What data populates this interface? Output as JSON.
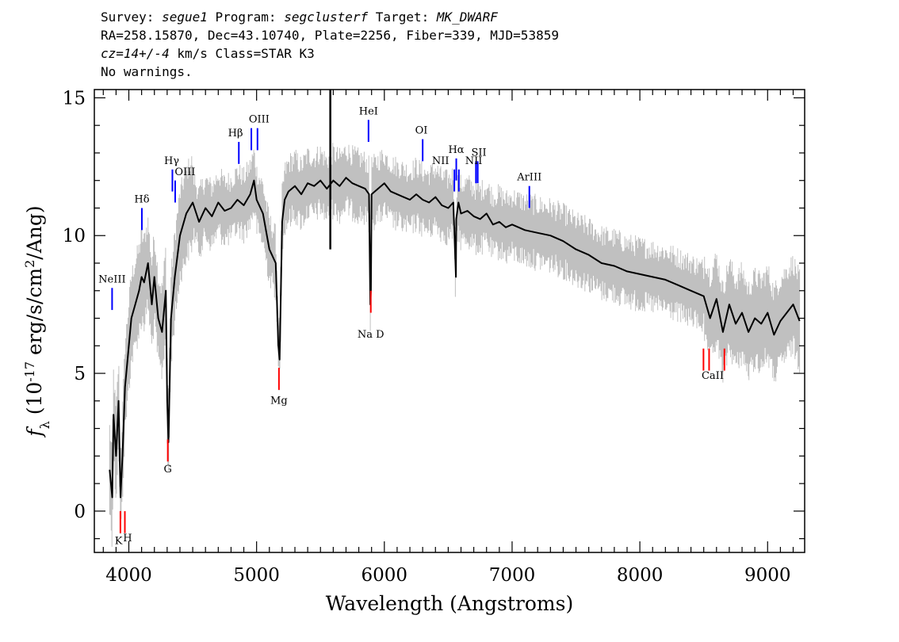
{
  "header": {
    "survey_label": "Survey: ",
    "survey": "segue1",
    "program_label": " Program: ",
    "program": "segclusterf",
    "target_label": " Target: ",
    "target": "MK_DWARF",
    "line2": "RA=258.15870, Dec=43.10740, Plate=2256, Fiber=339, MJD=53859",
    "cz": "cz=14+/-4",
    "line3_rest": " km/s Class=STAR K3",
    "line4": "No warnings."
  },
  "chart_data": {
    "type": "line",
    "xlabel": "Wavelength (Angstroms)",
    "ylabel": "f_λ (10^-17 erg/s/cm^2/Ang)",
    "xlim": [
      3730,
      9290
    ],
    "ylim": [
      -1.5,
      15.3
    ],
    "xticks": [
      4000,
      5000,
      6000,
      7000,
      8000,
      9000
    ],
    "yticks": [
      0,
      5,
      10,
      15
    ],
    "series": [
      {
        "role": "flux",
        "color": "#000000",
        "x": [
          3850,
          3870,
          3880,
          3900,
          3920,
          3935,
          3950,
          3970,
          4000,
          4020,
          4050,
          4080,
          4100,
          4120,
          4150,
          4180,
          4200,
          4230,
          4260,
          4290,
          4300,
          4310,
          4330,
          4360,
          4400,
          4450,
          4500,
          4550,
          4600,
          4650,
          4700,
          4750,
          4800,
          4850,
          4900,
          4950,
          4980,
          5000,
          5050,
          5100,
          5150,
          5170,
          5180,
          5190,
          5200,
          5220,
          5250,
          5300,
          5350,
          5400,
          5450,
          5500,
          5550,
          5600,
          5650,
          5700,
          5750,
          5800,
          5850,
          5880,
          5890,
          5895,
          5900,
          5950,
          6000,
          6050,
          6100,
          6150,
          6200,
          6250,
          6300,
          6350,
          6400,
          6450,
          6500,
          6540,
          6560,
          6563,
          6580,
          6600,
          6650,
          6700,
          6750,
          6800,
          6850,
          6900,
          6950,
          7000,
          7100,
          7200,
          7300,
          7400,
          7500,
          7600,
          7700,
          7800,
          7900,
          8000,
          8100,
          8200,
          8300,
          8400,
          8500,
          8550,
          8600,
          8650,
          8700,
          8750,
          8800,
          8850,
          8900,
          8950,
          9000,
          9050,
          9100,
          9150,
          9200,
          9250
        ],
        "y": [
          1.5,
          0.5,
          3.5,
          2.0,
          4.0,
          0.5,
          2.0,
          4.5,
          6.0,
          7.0,
          7.5,
          8.0,
          8.5,
          8.3,
          9.0,
          7.5,
          8.5,
          7.0,
          6.5,
          8.0,
          4.0,
          2.5,
          7.0,
          8.5,
          10.0,
          10.8,
          11.2,
          10.5,
          11.0,
          10.7,
          11.2,
          10.9,
          11.0,
          11.3,
          11.1,
          11.5,
          12.0,
          11.3,
          10.8,
          9.5,
          9.0,
          6.0,
          5.5,
          8.0,
          10.5,
          11.3,
          11.6,
          11.8,
          11.5,
          11.9,
          11.8,
          12.0,
          11.7,
          12.0,
          11.8,
          12.1,
          11.9,
          11.8,
          11.7,
          11.5,
          7.5,
          8.0,
          11.5,
          11.7,
          11.9,
          11.6,
          11.5,
          11.4,
          11.3,
          11.5,
          11.3,
          11.2,
          11.4,
          11.1,
          11.0,
          11.2,
          8.5,
          10.6,
          11.2,
          10.8,
          10.9,
          10.7,
          10.6,
          10.8,
          10.4,
          10.5,
          10.3,
          10.4,
          10.2,
          10.1,
          10.0,
          9.8,
          9.5,
          9.3,
          9.0,
          8.9,
          8.7,
          8.6,
          8.5,
          8.4,
          8.2,
          8.0,
          7.8,
          7.0,
          7.7,
          6.5,
          7.5,
          6.8,
          7.2,
          6.5,
          7.0,
          6.8,
          7.2,
          6.4,
          6.9,
          7.2,
          7.5,
          6.9
        ]
      }
    ],
    "lines": [
      {
        "name": "NeIII",
        "x": 3869,
        "color": "#0000ff",
        "y1": 7.3,
        "y2": 8.1
      },
      {
        "name": "Hδ",
        "x": 4102,
        "color": "#0000ff",
        "y1": 10.2,
        "y2": 11.0
      },
      {
        "name": "Hγ",
        "x": 4341,
        "color": "#0000ff",
        "y1": 11.6,
        "y2": 12.4
      },
      {
        "name": "OIII",
        "x": 4363,
        "color": "#0000ff",
        "y1": 11.2,
        "y2": 12.0
      },
      {
        "name": "Hβ",
        "x": 4861,
        "color": "#0000ff",
        "y1": 12.6,
        "y2": 13.4
      },
      {
        "name": "OIII",
        "x": 4959,
        "color": "#0000ff",
        "y1": 13.1,
        "y2": 13.9
      },
      {
        "name": "OIII",
        "x": 5007,
        "color": "#0000ff",
        "y1": 13.1,
        "y2": 13.9
      },
      {
        "name": "HeI",
        "x": 5876,
        "color": "#0000ff",
        "y1": 13.4,
        "y2": 14.2
      },
      {
        "name": "OI",
        "x": 6300,
        "color": "#0000ff",
        "y1": 12.7,
        "y2": 13.5
      },
      {
        "name": "NII",
        "x": 6548,
        "color": "#0000ff",
        "y1": 11.6,
        "y2": 12.4
      },
      {
        "name": "Hα",
        "x": 6563,
        "color": "#0000ff",
        "y1": 12.0,
        "y2": 12.8
      },
      {
        "name": "NII",
        "x": 6583,
        "color": "#0000ff",
        "y1": 11.6,
        "y2": 12.4
      },
      {
        "name": "SII",
        "x": 6717,
        "color": "#0000ff",
        "y1": 11.9,
        "y2": 12.7
      },
      {
        "name": "SII",
        "x": 6731,
        "color": "#0000ff",
        "y1": 11.9,
        "y2": 12.7
      },
      {
        "name": "ArIII",
        "x": 7135,
        "color": "#0000ff",
        "y1": 11.0,
        "y2": 11.8
      },
      {
        "name": "K",
        "x": 3934,
        "color": "#ff0000",
        "y1": -0.8,
        "y2": 0.0
      },
      {
        "name": "H",
        "x": 3969,
        "color": "#ff0000",
        "y1": -0.8,
        "y2": 0.0
      },
      {
        "name": "G",
        "x": 4305,
        "color": "#ff0000",
        "y1": 1.8,
        "y2": 2.6
      },
      {
        "name": "Mg",
        "x": 5175,
        "color": "#ff0000",
        "y1": 4.4,
        "y2": 5.2
      },
      {
        "name": "Na D",
        "x": 5894,
        "color": "#ff0000",
        "y1": 7.2,
        "y2": 8.0
      },
      {
        "name": "CaII",
        "x": 8498,
        "color": "#ff0000",
        "y1": 5.1,
        "y2": 5.9
      },
      {
        "name": "CaII",
        "x": 8542,
        "color": "#ff0000",
        "y1": 5.1,
        "y2": 5.9
      },
      {
        "name": "CaII",
        "x": 8662,
        "color": "#ff0000",
        "y1": 5.1,
        "y2": 5.9
      }
    ],
    "line_labels": [
      {
        "text": "NeIII",
        "x": 3869,
        "y": 8.3
      },
      {
        "text": "Hδ",
        "x": 4102,
        "y": 11.2
      },
      {
        "text": "Hγ",
        "x": 4335,
        "y": 12.6
      },
      {
        "text": "OIII",
        "x": 4440,
        "y": 12.2
      },
      {
        "text": "Hβ",
        "x": 4835,
        "y": 13.6
      },
      {
        "text": "OIII",
        "x": 5020,
        "y": 14.1
      },
      {
        "text": "HeI",
        "x": 5876,
        "y": 14.4
      },
      {
        "text": "OI",
        "x": 6290,
        "y": 13.7
      },
      {
        "text": "NII",
        "x": 6440,
        "y": 12.6
      },
      {
        "text": "Hα",
        "x": 6563,
        "y": 13.0
      },
      {
        "text": "NII",
        "x": 6700,
        "y": 12.6
      },
      {
        "text": "SII",
        "x": 6740,
        "y": 12.9
      },
      {
        "text": "ArIII",
        "x": 7135,
        "y": 12.0
      },
      {
        "text": "K",
        "x": 3920,
        "y": -1.2
      },
      {
        "text": "H",
        "x": 3990,
        "y": -1.1
      },
      {
        "text": "G",
        "x": 4305,
        "y": 1.4
      },
      {
        "text": "Mg",
        "x": 5175,
        "y": 3.9
      },
      {
        "text": "Na D",
        "x": 5894,
        "y": 6.3
      },
      {
        "text": "CaII",
        "x": 8570,
        "y": 4.8
      }
    ],
    "colors": {
      "noise": "#c0c0c0",
      "flux": "#000000",
      "emission": "#0000ff",
      "absorption": "#ff0000"
    },
    "spikes": [
      {
        "x": 5577,
        "y1": 9.5,
        "y2": 15.3
      }
    ]
  }
}
